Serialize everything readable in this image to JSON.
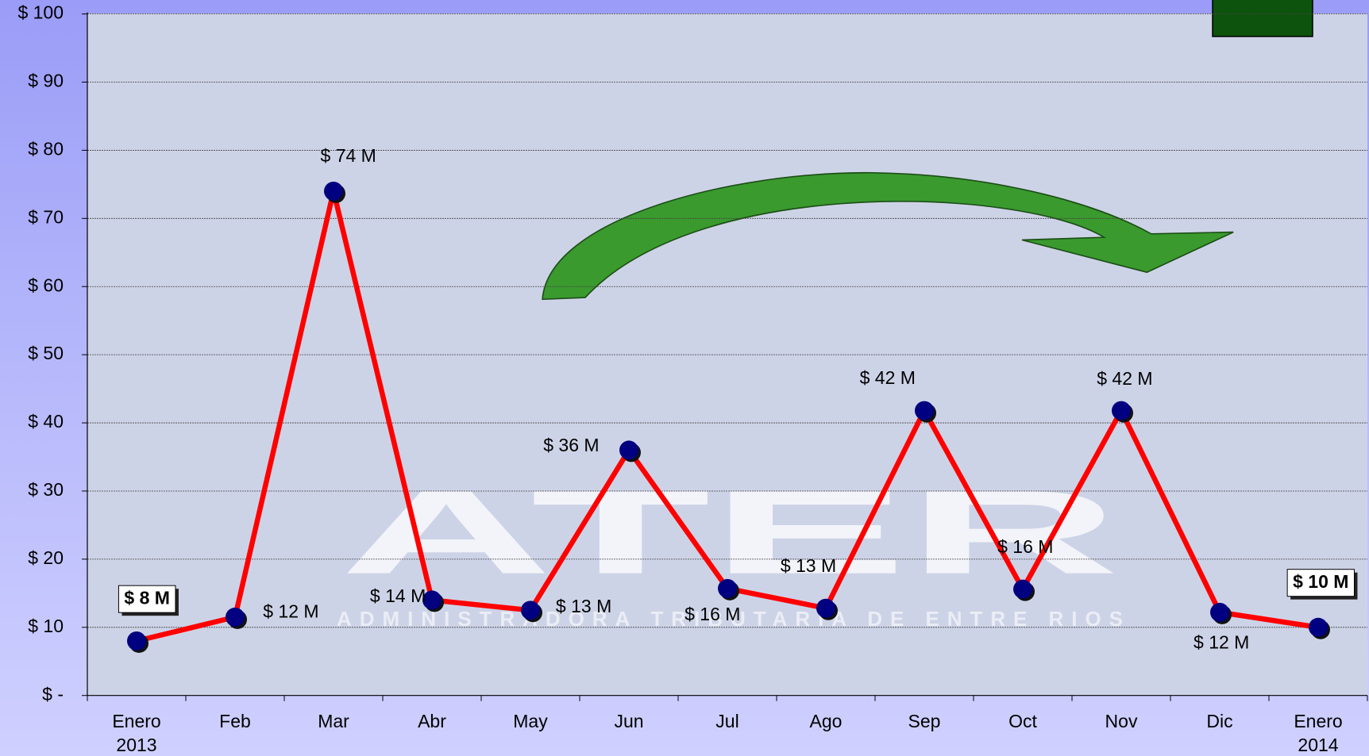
{
  "chart_data": {
    "type": "line",
    "categories": [
      "Enero 2013",
      "Feb",
      "Mar",
      "Abr",
      "May",
      "Jun",
      "Jul",
      "Ago",
      "Sep",
      "Oct",
      "Nov",
      "Dic",
      "Enero 2014"
    ],
    "values": [
      8,
      11.5,
      74,
      14,
      12.5,
      36,
      15.7,
      12.8,
      41.8,
      15.6,
      41.8,
      12.2,
      10
    ],
    "value_labels": [
      "$ 8 M",
      "$ 12 M",
      "$ 74 M",
      "$ 14 M",
      "$ 13 M",
      "$ 36 M",
      "$ 16 M",
      "$ 13 M",
      "$ 42 M",
      "$ 16 M",
      "$ 42 M",
      "$ 12 M",
      "$ 10 M"
    ],
    "color": "#ff0000",
    "marker_color": "#000080",
    "ylim": [
      0,
      100
    ],
    "yticks": [
      {
        "value": 0,
        "label": "$ -"
      },
      {
        "value": 10,
        "label": "$ 10"
      },
      {
        "value": 20,
        "label": "$ 20"
      },
      {
        "value": 30,
        "label": "$ 30"
      },
      {
        "value": 40,
        "label": "$ 40"
      },
      {
        "value": 50,
        "label": "$ 50"
      },
      {
        "value": 60,
        "label": "$ 60"
      },
      {
        "value": 70,
        "label": "$ 70"
      },
      {
        "value": 80,
        "label": "$ 80"
      },
      {
        "value": 90,
        "label": "$ 90"
      },
      {
        "value": 100,
        "label": "$ 100"
      }
    ],
    "grid": true,
    "watermark": "ATER",
    "watermark_subtitle": "ADMINISTRADORA TRIBUTARIA DE ENTRE RIOS"
  }
}
